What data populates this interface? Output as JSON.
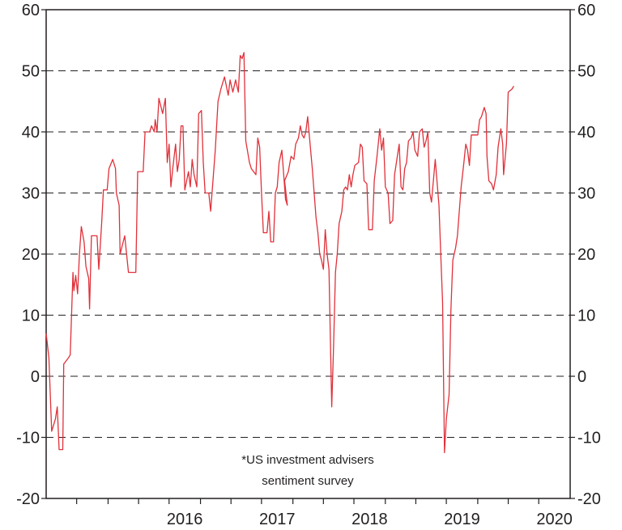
{
  "chart_data": {
    "type": "line",
    "title": "",
    "xlabel": "",
    "ylabel": "",
    "ylim": [
      -20,
      60
    ],
    "yticks": [
      60,
      50,
      40,
      30,
      20,
      10,
      0,
      -10,
      -20
    ],
    "ytick_labels": [
      "60",
      "50",
      "40",
      "30",
      "20",
      "10",
      "0",
      "-10",
      "-20"
    ],
    "xlim": [
      2015.0,
      2020.67
    ],
    "xtick_labels": [
      {
        "label": "2016",
        "x": 2016.5
      },
      {
        "label": "2017",
        "x": 2017.5
      },
      {
        "label": "2018",
        "x": 2018.5
      },
      {
        "label": "2019",
        "x": 2019.5
      },
      {
        "label": "2020",
        "x": 2020.5
      }
    ],
    "minor_ticks": [
      2015.33,
      2015.67,
      2016.0,
      2016.33,
      2016.67,
      2017.0,
      2017.33,
      2017.67,
      2018.0,
      2018.33,
      2018.67,
      2019.0,
      2019.33,
      2019.67,
      2020.0,
      2020.33
    ],
    "grid": "horizontal dashed",
    "annotation": [
      "*US investment advisers",
      "sentiment survey"
    ],
    "colors": {
      "series": "#e0313a",
      "axis": "#231f20",
      "grid": "#231f20"
    },
    "series": [
      {
        "name": "",
        "points": [
          [
            2015.0,
            7
          ],
          [
            2015.03,
            3
          ],
          [
            2015.06,
            -9
          ],
          [
            2015.1,
            -7
          ],
          [
            2015.12,
            -5
          ],
          [
            2015.14,
            -12
          ],
          [
            2015.18,
            -12
          ],
          [
            2015.19,
            2
          ],
          [
            2015.24,
            3
          ],
          [
            2015.26,
            3.5
          ],
          [
            2015.29,
            17
          ],
          [
            2015.3,
            14
          ],
          [
            2015.32,
            16.5
          ],
          [
            2015.34,
            13.5
          ],
          [
            2015.36,
            20
          ],
          [
            2015.38,
            24.5
          ],
          [
            2015.41,
            22
          ],
          [
            2015.43,
            18
          ],
          [
            2015.46,
            16
          ],
          [
            2015.47,
            11
          ],
          [
            2015.49,
            23
          ],
          [
            2015.55,
            23
          ],
          [
            2015.57,
            17.5
          ],
          [
            2015.6,
            25
          ],
          [
            2015.62,
            30.5
          ],
          [
            2015.66,
            30.5
          ],
          [
            2015.68,
            34
          ],
          [
            2015.72,
            35.5
          ],
          [
            2015.75,
            34
          ],
          [
            2015.76,
            30
          ],
          [
            2015.79,
            28
          ],
          [
            2015.8,
            20
          ],
          [
            2015.85,
            23
          ],
          [
            2015.89,
            17
          ],
          [
            2015.97,
            17
          ],
          [
            2015.99,
            33.5
          ],
          [
            2016.05,
            33.5
          ],
          [
            2016.07,
            40
          ],
          [
            2016.12,
            40
          ],
          [
            2016.14,
            41
          ],
          [
            2016.17,
            40
          ],
          [
            2016.18,
            42
          ],
          [
            2016.2,
            40
          ],
          [
            2016.22,
            45.5
          ],
          [
            2016.26,
            43
          ],
          [
            2016.29,
            45.5
          ],
          [
            2016.31,
            35
          ],
          [
            2016.33,
            38
          ],
          [
            2016.35,
            31
          ],
          [
            2016.37,
            34
          ],
          [
            2016.4,
            38
          ],
          [
            2016.42,
            33.5
          ],
          [
            2016.44,
            35.5
          ],
          [
            2016.46,
            41
          ],
          [
            2016.48,
            41
          ],
          [
            2016.5,
            30.5
          ],
          [
            2016.54,
            33.5
          ],
          [
            2016.56,
            31
          ],
          [
            2016.58,
            35.5
          ],
          [
            2016.6,
            33
          ],
          [
            2016.63,
            31
          ],
          [
            2016.65,
            43
          ],
          [
            2016.68,
            43.5
          ],
          [
            2016.7,
            35
          ],
          [
            2016.72,
            30
          ],
          [
            2016.76,
            30
          ],
          [
            2016.78,
            27
          ],
          [
            2016.83,
            37
          ],
          [
            2016.86,
            45
          ],
          [
            2016.89,
            47
          ],
          [
            2016.93,
            49
          ],
          [
            2016.97,
            46
          ],
          [
            2016.99,
            48.5
          ],
          [
            2017.02,
            46.5
          ],
          [
            2017.05,
            48.5
          ],
          [
            2017.08,
            46.5
          ],
          [
            2017.1,
            52.5
          ],
          [
            2017.12,
            52
          ],
          [
            2017.14,
            53
          ],
          [
            2017.16,
            38.5
          ],
          [
            2017.2,
            35
          ],
          [
            2017.22,
            34
          ],
          [
            2017.27,
            33
          ],
          [
            2017.29,
            39
          ],
          [
            2017.31,
            37.5
          ],
          [
            2017.33,
            30
          ],
          [
            2017.35,
            23.5
          ],
          [
            2017.39,
            23.5
          ],
          [
            2017.41,
            27
          ],
          [
            2017.43,
            22
          ],
          [
            2017.46,
            22
          ],
          [
            2017.48,
            30
          ],
          [
            2017.5,
            31
          ],
          [
            2017.52,
            35
          ],
          [
            2017.55,
            37
          ],
          [
            2017.57,
            33
          ],
          [
            2017.59,
            29
          ],
          [
            2017.61,
            28
          ],
          [
            2017.58,
            32
          ],
          [
            2017.62,
            33.5
          ],
          [
            2017.65,
            36
          ],
          [
            2017.68,
            35.5
          ],
          [
            2017.7,
            38
          ],
          [
            2017.73,
            39
          ],
          [
            2017.75,
            41
          ],
          [
            2017.77,
            39.5
          ],
          [
            2017.79,
            39
          ],
          [
            2017.81,
            40
          ],
          [
            2017.83,
            42.5
          ],
          [
            2017.85,
            39
          ],
          [
            2017.88,
            34
          ],
          [
            2017.9,
            30
          ],
          [
            2017.92,
            26
          ],
          [
            2017.94,
            23.5
          ],
          [
            2017.96,
            20
          ],
          [
            2017.98,
            19
          ],
          [
            2018.0,
            17.5
          ],
          [
            2018.02,
            24
          ],
          [
            2018.04,
            20
          ],
          [
            2018.06,
            17.5
          ],
          [
            2018.09,
            -5
          ],
          [
            2018.11,
            5
          ],
          [
            2018.13,
            17
          ],
          [
            2018.15,
            20
          ],
          [
            2018.17,
            25
          ],
          [
            2018.2,
            27
          ],
          [
            2018.22,
            30.5
          ],
          [
            2018.24,
            31
          ],
          [
            2018.26,
            30.5
          ],
          [
            2018.28,
            33
          ],
          [
            2018.3,
            31
          ],
          [
            2018.32,
            33
          ],
          [
            2018.34,
            34.5
          ],
          [
            2018.38,
            35
          ],
          [
            2018.4,
            38
          ],
          [
            2018.42,
            37.5
          ],
          [
            2018.44,
            32
          ],
          [
            2018.47,
            31.5
          ],
          [
            2018.49,
            24
          ],
          [
            2018.53,
            24
          ],
          [
            2018.55,
            32
          ],
          [
            2018.58,
            36
          ],
          [
            2018.61,
            40.5
          ],
          [
            2018.63,
            37
          ],
          [
            2018.65,
            39
          ],
          [
            2018.67,
            31
          ],
          [
            2018.7,
            30
          ],
          [
            2018.72,
            25
          ],
          [
            2018.75,
            25.5
          ],
          [
            2018.77,
            33
          ],
          [
            2018.8,
            36
          ],
          [
            2018.82,
            38
          ],
          [
            2018.84,
            31
          ],
          [
            2018.86,
            30.5
          ],
          [
            2018.88,
            34
          ],
          [
            2018.9,
            35
          ],
          [
            2018.92,
            38.5
          ],
          [
            2018.95,
            39
          ],
          [
            2018.97,
            40
          ],
          [
            2018.99,
            37
          ],
          [
            2019.02,
            36
          ],
          [
            2019.04,
            40
          ],
          [
            2019.07,
            40.5
          ],
          [
            2019.09,
            37.5
          ],
          [
            2019.11,
            38.5
          ],
          [
            2019.13,
            40
          ],
          [
            2019.15,
            30
          ],
          [
            2019.17,
            28.5
          ],
          [
            2019.19,
            32
          ],
          [
            2019.21,
            35.5
          ],
          [
            2019.25,
            28
          ],
          [
            2019.27,
            20
          ],
          [
            2019.29,
            12
          ],
          [
            2019.31,
            -12.5
          ],
          [
            2019.33,
            -7
          ],
          [
            2019.36,
            -3
          ],
          [
            2019.38,
            11
          ],
          [
            2019.4,
            19
          ],
          [
            2019.43,
            21
          ],
          [
            2019.45,
            23
          ],
          [
            2019.47,
            27
          ],
          [
            2019.49,
            31
          ],
          [
            2019.52,
            35
          ],
          [
            2019.54,
            38
          ],
          [
            2019.56,
            37
          ],
          [
            2019.58,
            34.5
          ],
          [
            2019.6,
            39.5
          ],
          [
            2019.64,
            39.5
          ],
          [
            2019.67,
            39.5
          ],
          [
            2019.69,
            42
          ],
          [
            2019.71,
            42.5
          ],
          [
            2019.74,
            44
          ],
          [
            2019.76,
            43
          ],
          [
            2019.77,
            36
          ],
          [
            2019.79,
            32
          ],
          [
            2019.82,
            31.5
          ],
          [
            2019.84,
            30.5
          ],
          [
            2019.87,
            33
          ],
          [
            2019.89,
            37.5
          ],
          [
            2019.92,
            40.5
          ],
          [
            2019.94,
            38
          ],
          [
            2019.95,
            33
          ],
          [
            2019.98,
            38
          ],
          [
            2020.0,
            46.5
          ],
          [
            2020.04,
            47
          ],
          [
            2020.06,
            47.5
          ]
        ]
      }
    ]
  }
}
